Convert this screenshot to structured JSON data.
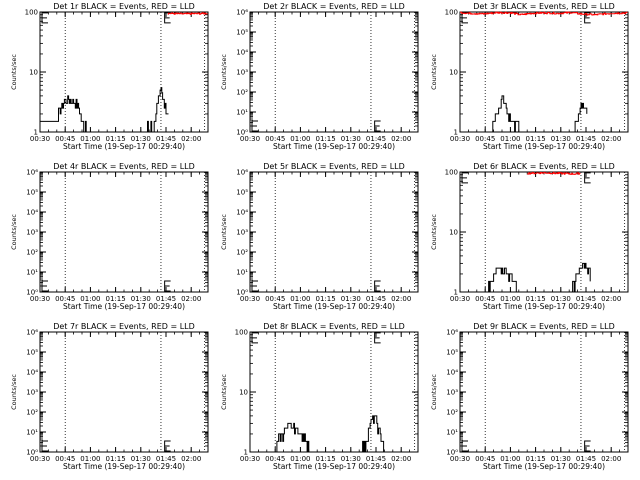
{
  "figure": {
    "background": "#ffffff",
    "axis_color": "#000000",
    "events_color": "#000000",
    "lld_color": "#ff0000"
  },
  "chart_data": [
    {
      "type": "line",
      "title": "Det 1r BLACK = Events, RED = LLD",
      "xlabel": "Start Time (19-Sep-17 00:29:40)",
      "ylabel": "Counts/sec",
      "y_scale": "log",
      "ylim": [
        1,
        100
      ],
      "y_ticks": [
        1,
        10,
        100
      ],
      "y_tick_labels": [
        "1",
        "10",
        "100"
      ],
      "xlim": [
        "00:30",
        "02:10"
      ],
      "x_ticks": [
        "00:30",
        "00:45",
        "01:00",
        "01:15",
        "01:30",
        "01:45",
        "02:00"
      ],
      "vlines": [
        "00:45",
        "01:42",
        "02:08"
      ],
      "e_markers": [
        {
          "x": "00:30",
          "y": 80
        },
        {
          "x": "01:43",
          "y": 80
        }
      ],
      "series": [
        {
          "color": "#000000",
          "style": "noisy",
          "points": [
            [
              "00:30",
              1.5
            ],
            [
              "00:37",
              1.5
            ],
            [
              "00:40",
              1.8
            ],
            [
              "00:43",
              2.5
            ],
            [
              "00:45",
              3.5
            ],
            [
              "00:48",
              3.5
            ],
            [
              "00:52",
              3.0
            ],
            [
              "00:55",
              1.5
            ],
            [
              "00:58",
              1.2
            ],
            [
              "01:00",
              1.0
            ],
            [
              "01:30",
              1.0
            ],
            [
              "01:38",
              1.3
            ],
            [
              "01:40",
              3.0
            ],
            [
              "01:42",
              5.0
            ],
            [
              "01:44",
              3.0
            ],
            [
              "01:47",
              1.8
            ]
          ]
        },
        {
          "color": "#ff0000",
          "style": "noisy",
          "points": [
            [
              "01:46",
              95
            ],
            [
              "01:55",
              93
            ],
            [
              "02:10",
              95
            ]
          ]
        }
      ]
    },
    {
      "type": "line",
      "title": "Det 2r BLACK = Events, RED = LLD",
      "xlabel": "Start Time (19-Sep-17 00:29:40)",
      "ylabel": "Counts/sec",
      "y_scale": "log",
      "ylim": [
        1,
        1000000
      ],
      "y_ticks": [
        1,
        10,
        100,
        1000,
        10000,
        100000,
        1000000
      ],
      "y_tick_labels": [
        "10⁰",
        "10¹",
        "10²",
        "10³",
        "10⁴",
        "10⁵",
        "10⁶"
      ],
      "xlim": [
        "00:30",
        "02:10"
      ],
      "x_ticks": [
        "00:30",
        "00:45",
        "01:00",
        "01:15",
        "01:30",
        "01:45",
        "02:00"
      ],
      "vlines": [
        "00:45",
        "01:42",
        "02:08"
      ],
      "e_markers": [
        {
          "x": "00:30",
          "y": 2
        },
        {
          "x": "01:43",
          "y": 2
        }
      ],
      "series": []
    },
    {
      "type": "line",
      "title": "Det 3r BLACK = Events, RED = LLD",
      "xlabel": "Start Time (19-Sep-17 00:29:40)",
      "ylabel": "Counts/sec",
      "y_scale": "log",
      "ylim": [
        1,
        100
      ],
      "y_ticks": [
        1,
        10,
        100
      ],
      "y_tick_labels": [
        "1",
        "10",
        "100"
      ],
      "xlim": [
        "00:30",
        "02:10"
      ],
      "x_ticks": [
        "00:30",
        "00:45",
        "01:00",
        "01:15",
        "01:30",
        "01:45",
        "02:00"
      ],
      "vlines": [
        "00:45",
        "01:42",
        "02:08"
      ],
      "e_markers": [
        {
          "x": "00:30",
          "y": 80
        },
        {
          "x": "01:43",
          "y": 80
        }
      ],
      "series": [
        {
          "color": "#000000",
          "style": "noisy",
          "points": [
            [
              "00:30",
              1.0
            ],
            [
              "00:48",
              1.0
            ],
            [
              "00:50",
              1.5
            ],
            [
              "00:53",
              2.5
            ],
            [
              "00:55",
              3.5
            ],
            [
              "00:57",
              2.5
            ],
            [
              "01:00",
              1.5
            ],
            [
              "01:05",
              1.2
            ],
            [
              "01:08",
              1.0
            ],
            [
              "01:38",
              1.0
            ],
            [
              "01:40",
              1.5
            ],
            [
              "01:42",
              3.0
            ],
            [
              "01:44",
              2.5
            ],
            [
              "01:46",
              2.0
            ]
          ]
        },
        {
          "color": "#ff0000",
          "style": "noisy",
          "points": [
            [
              "00:30",
              98
            ],
            [
              "00:36",
              95
            ],
            [
              "00:44",
              93
            ],
            [
              "00:52",
              98
            ],
            [
              "01:00",
              97
            ],
            [
              "01:06",
              90
            ],
            [
              "01:12",
              95
            ],
            [
              "01:20",
              97
            ],
            [
              "01:28",
              95
            ],
            [
              "01:36",
              98
            ],
            [
              "01:42",
              93
            ],
            [
              "01:50",
              90
            ],
            [
              "02:00",
              95
            ],
            [
              "02:10",
              97
            ]
          ]
        }
      ]
    },
    {
      "type": "line",
      "title": "Det 4r BLACK = Events, RED = LLD",
      "xlabel": "Start Time (19-Sep-17 00:29:40)",
      "ylabel": "Counts/sec",
      "y_scale": "log",
      "ylim": [
        1,
        1000000
      ],
      "y_ticks": [
        1,
        10,
        100,
        1000,
        10000,
        100000,
        1000000
      ],
      "y_tick_labels": [
        "10⁰",
        "10¹",
        "10²",
        "10³",
        "10⁴",
        "10⁵",
        "10⁶"
      ],
      "xlim": [
        "00:30",
        "02:10"
      ],
      "x_ticks": [
        "00:30",
        "00:45",
        "01:00",
        "01:15",
        "01:30",
        "01:45",
        "02:00"
      ],
      "vlines": [
        "00:45",
        "01:42",
        "02:08"
      ],
      "e_markers": [
        {
          "x": "00:30",
          "y": 2
        },
        {
          "x": "01:43",
          "y": 2
        }
      ],
      "series": []
    },
    {
      "type": "line",
      "title": "Det 5r BLACK = Events, RED = LLD",
      "xlabel": "Start Time (19-Sep-17 00:29:40)",
      "ylabel": "Counts/sec",
      "y_scale": "log",
      "ylim": [
        1,
        1000000
      ],
      "y_ticks": [
        1,
        10,
        100,
        1000,
        10000,
        100000,
        1000000
      ],
      "y_tick_labels": [
        "10⁰",
        "10¹",
        "10²",
        "10³",
        "10⁴",
        "10⁵",
        "10⁶"
      ],
      "xlim": [
        "00:30",
        "02:10"
      ],
      "x_ticks": [
        "00:30",
        "00:45",
        "01:00",
        "01:15",
        "01:30",
        "01:45",
        "02:00"
      ],
      "vlines": [
        "00:45",
        "01:42",
        "02:08"
      ],
      "e_markers": [
        {
          "x": "00:30",
          "y": 2
        },
        {
          "x": "01:43",
          "y": 2
        }
      ],
      "series": []
    },
    {
      "type": "line",
      "title": "Det 6r BLACK = Events, RED = LLD",
      "xlabel": "Start Time (19-Sep-17 00:29:40)",
      "ylabel": "Counts/sec",
      "y_scale": "log",
      "ylim": [
        1,
        100
      ],
      "y_ticks": [
        1,
        10,
        100
      ],
      "y_tick_labels": [
        "1",
        "10",
        "100"
      ],
      "xlim": [
        "00:30",
        "02:10"
      ],
      "x_ticks": [
        "00:30",
        "00:45",
        "01:00",
        "01:15",
        "01:30",
        "01:45",
        "02:00"
      ],
      "vlines": [
        "00:45",
        "01:42",
        "02:08"
      ],
      "e_markers": [
        {
          "x": "00:30",
          "y": 80
        },
        {
          "x": "01:43",
          "y": 80
        }
      ],
      "series": [
        {
          "color": "#000000",
          "style": "noisy",
          "points": [
            [
              "00:30",
              1.0
            ],
            [
              "00:45",
              1.0
            ],
            [
              "00:48",
              1.3
            ],
            [
              "00:50",
              2.0
            ],
            [
              "00:53",
              2.5
            ],
            [
              "00:56",
              2.5
            ],
            [
              "00:59",
              2.0
            ],
            [
              "01:02",
              1.5
            ],
            [
              "01:05",
              1.2
            ],
            [
              "01:08",
              1.0
            ],
            [
              "01:35",
              1.0
            ],
            [
              "01:38",
              1.3
            ],
            [
              "01:40",
              2.0
            ],
            [
              "01:43",
              3.0
            ],
            [
              "01:45",
              2.5
            ],
            [
              "01:48",
              1.8
            ]
          ]
        },
        {
          "color": "#ff0000",
          "style": "noisy",
          "points": [
            [
              "01:10",
              95
            ],
            [
              "01:20",
              97
            ],
            [
              "01:30",
              95
            ],
            [
              "01:38",
              93
            ],
            [
              "01:42",
              96
            ]
          ]
        }
      ]
    },
    {
      "type": "line",
      "title": "Det 7r BLACK = Events, RED = LLD",
      "xlabel": "Start Time (19-Sep-17 00:29:40)",
      "ylabel": "Counts/sec",
      "y_scale": "log",
      "ylim": [
        1,
        1000000
      ],
      "y_ticks": [
        1,
        10,
        100,
        1000,
        10000,
        100000,
        1000000
      ],
      "y_tick_labels": [
        "10⁰",
        "10¹",
        "10²",
        "10³",
        "10⁴",
        "10⁵",
        "10⁶"
      ],
      "xlim": [
        "00:30",
        "02:10"
      ],
      "x_ticks": [
        "00:30",
        "00:45",
        "01:00",
        "01:15",
        "01:30",
        "01:45",
        "02:00"
      ],
      "vlines": [
        "00:45",
        "01:42",
        "02:08"
      ],
      "e_markers": [
        {
          "x": "00:30",
          "y": 2
        },
        {
          "x": "01:43",
          "y": 2
        }
      ],
      "series": []
    },
    {
      "type": "line",
      "title": "Det 8r BLACK = Events, RED = LLD",
      "xlabel": "Start Time (19-Sep-17 00:29:40)",
      "ylabel": "Counts/sec",
      "y_scale": "log",
      "ylim": [
        1,
        100
      ],
      "y_ticks": [
        1,
        10,
        100
      ],
      "y_tick_labels": [
        "1",
        "10",
        "100"
      ],
      "xlim": [
        "00:30",
        "02:10"
      ],
      "x_ticks": [
        "00:30",
        "00:45",
        "01:00",
        "01:15",
        "01:30",
        "01:45",
        "02:00"
      ],
      "vlines": [
        "00:45",
        "01:42",
        "02:08"
      ],
      "e_markers": [
        {
          "x": "00:30",
          "y": 80
        },
        {
          "x": "01:43",
          "y": 80
        }
      ],
      "series": [
        {
          "color": "#000000",
          "style": "noisy",
          "points": [
            [
              "00:30",
              1.0
            ],
            [
              "00:44",
              1.0
            ],
            [
              "00:46",
              1.5
            ],
            [
              "00:49",
              2.0
            ],
            [
              "00:52",
              2.5
            ],
            [
              "00:56",
              2.5
            ],
            [
              "01:00",
              2.0
            ],
            [
              "01:03",
              1.5
            ],
            [
              "01:06",
              1.0
            ],
            [
              "01:36",
              1.0
            ],
            [
              "01:39",
              1.5
            ],
            [
              "01:42",
              3.0
            ],
            [
              "01:44",
              4.0
            ],
            [
              "01:46",
              2.5
            ],
            [
              "01:48",
              1.5
            ],
            [
              "01:50",
              1.0
            ]
          ]
        }
      ]
    },
    {
      "type": "line",
      "title": "Det 9r BLACK = Events, RED = LLD",
      "xlabel": "Start Time (19-Sep-17 00:29:40)",
      "ylabel": "Counts/sec",
      "y_scale": "log",
      "ylim": [
        1,
        1000000
      ],
      "y_ticks": [
        1,
        10,
        100,
        1000,
        10000,
        100000,
        1000000
      ],
      "y_tick_labels": [
        "10⁰",
        "10¹",
        "10²",
        "10³",
        "10⁴",
        "10⁵",
        "10⁶"
      ],
      "xlim": [
        "00:30",
        "02:10"
      ],
      "x_ticks": [
        "00:30",
        "00:45",
        "01:00",
        "01:15",
        "01:30",
        "01:45",
        "02:00"
      ],
      "vlines": [
        "00:45",
        "01:42",
        "02:08"
      ],
      "e_markers": [
        {
          "x": "00:30",
          "y": 2
        },
        {
          "x": "01:43",
          "y": 2
        }
      ],
      "series": []
    }
  ]
}
